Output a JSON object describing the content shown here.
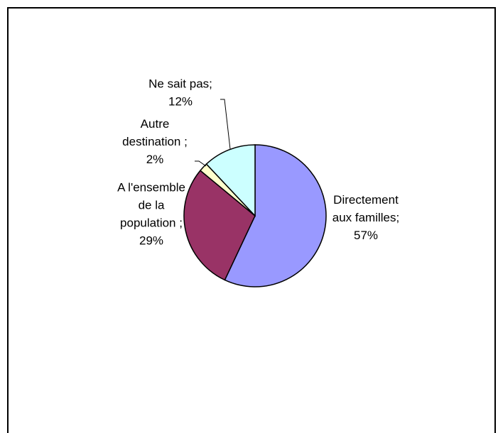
{
  "chart_data": {
    "type": "pie",
    "slices": [
      {
        "label_lines": [
          "Directement",
          "aux familles;",
          "57%"
        ],
        "value": 57,
        "color": "#9999FF"
      },
      {
        "label_lines": [
          "A l'ensemble",
          "de la",
          "population ;",
          "29%"
        ],
        "value": 29,
        "color": "#993366"
      },
      {
        "label_lines": [
          "Autre",
          "destination ;",
          "2%"
        ],
        "value": 2,
        "color": "#FFFFCC"
      },
      {
        "label_lines": [
          "Ne sait pas;",
          "12%"
        ],
        "value": 12,
        "color": "#CCFFFF"
      }
    ],
    "start": "12 o'clock",
    "direction": "clockwise"
  }
}
